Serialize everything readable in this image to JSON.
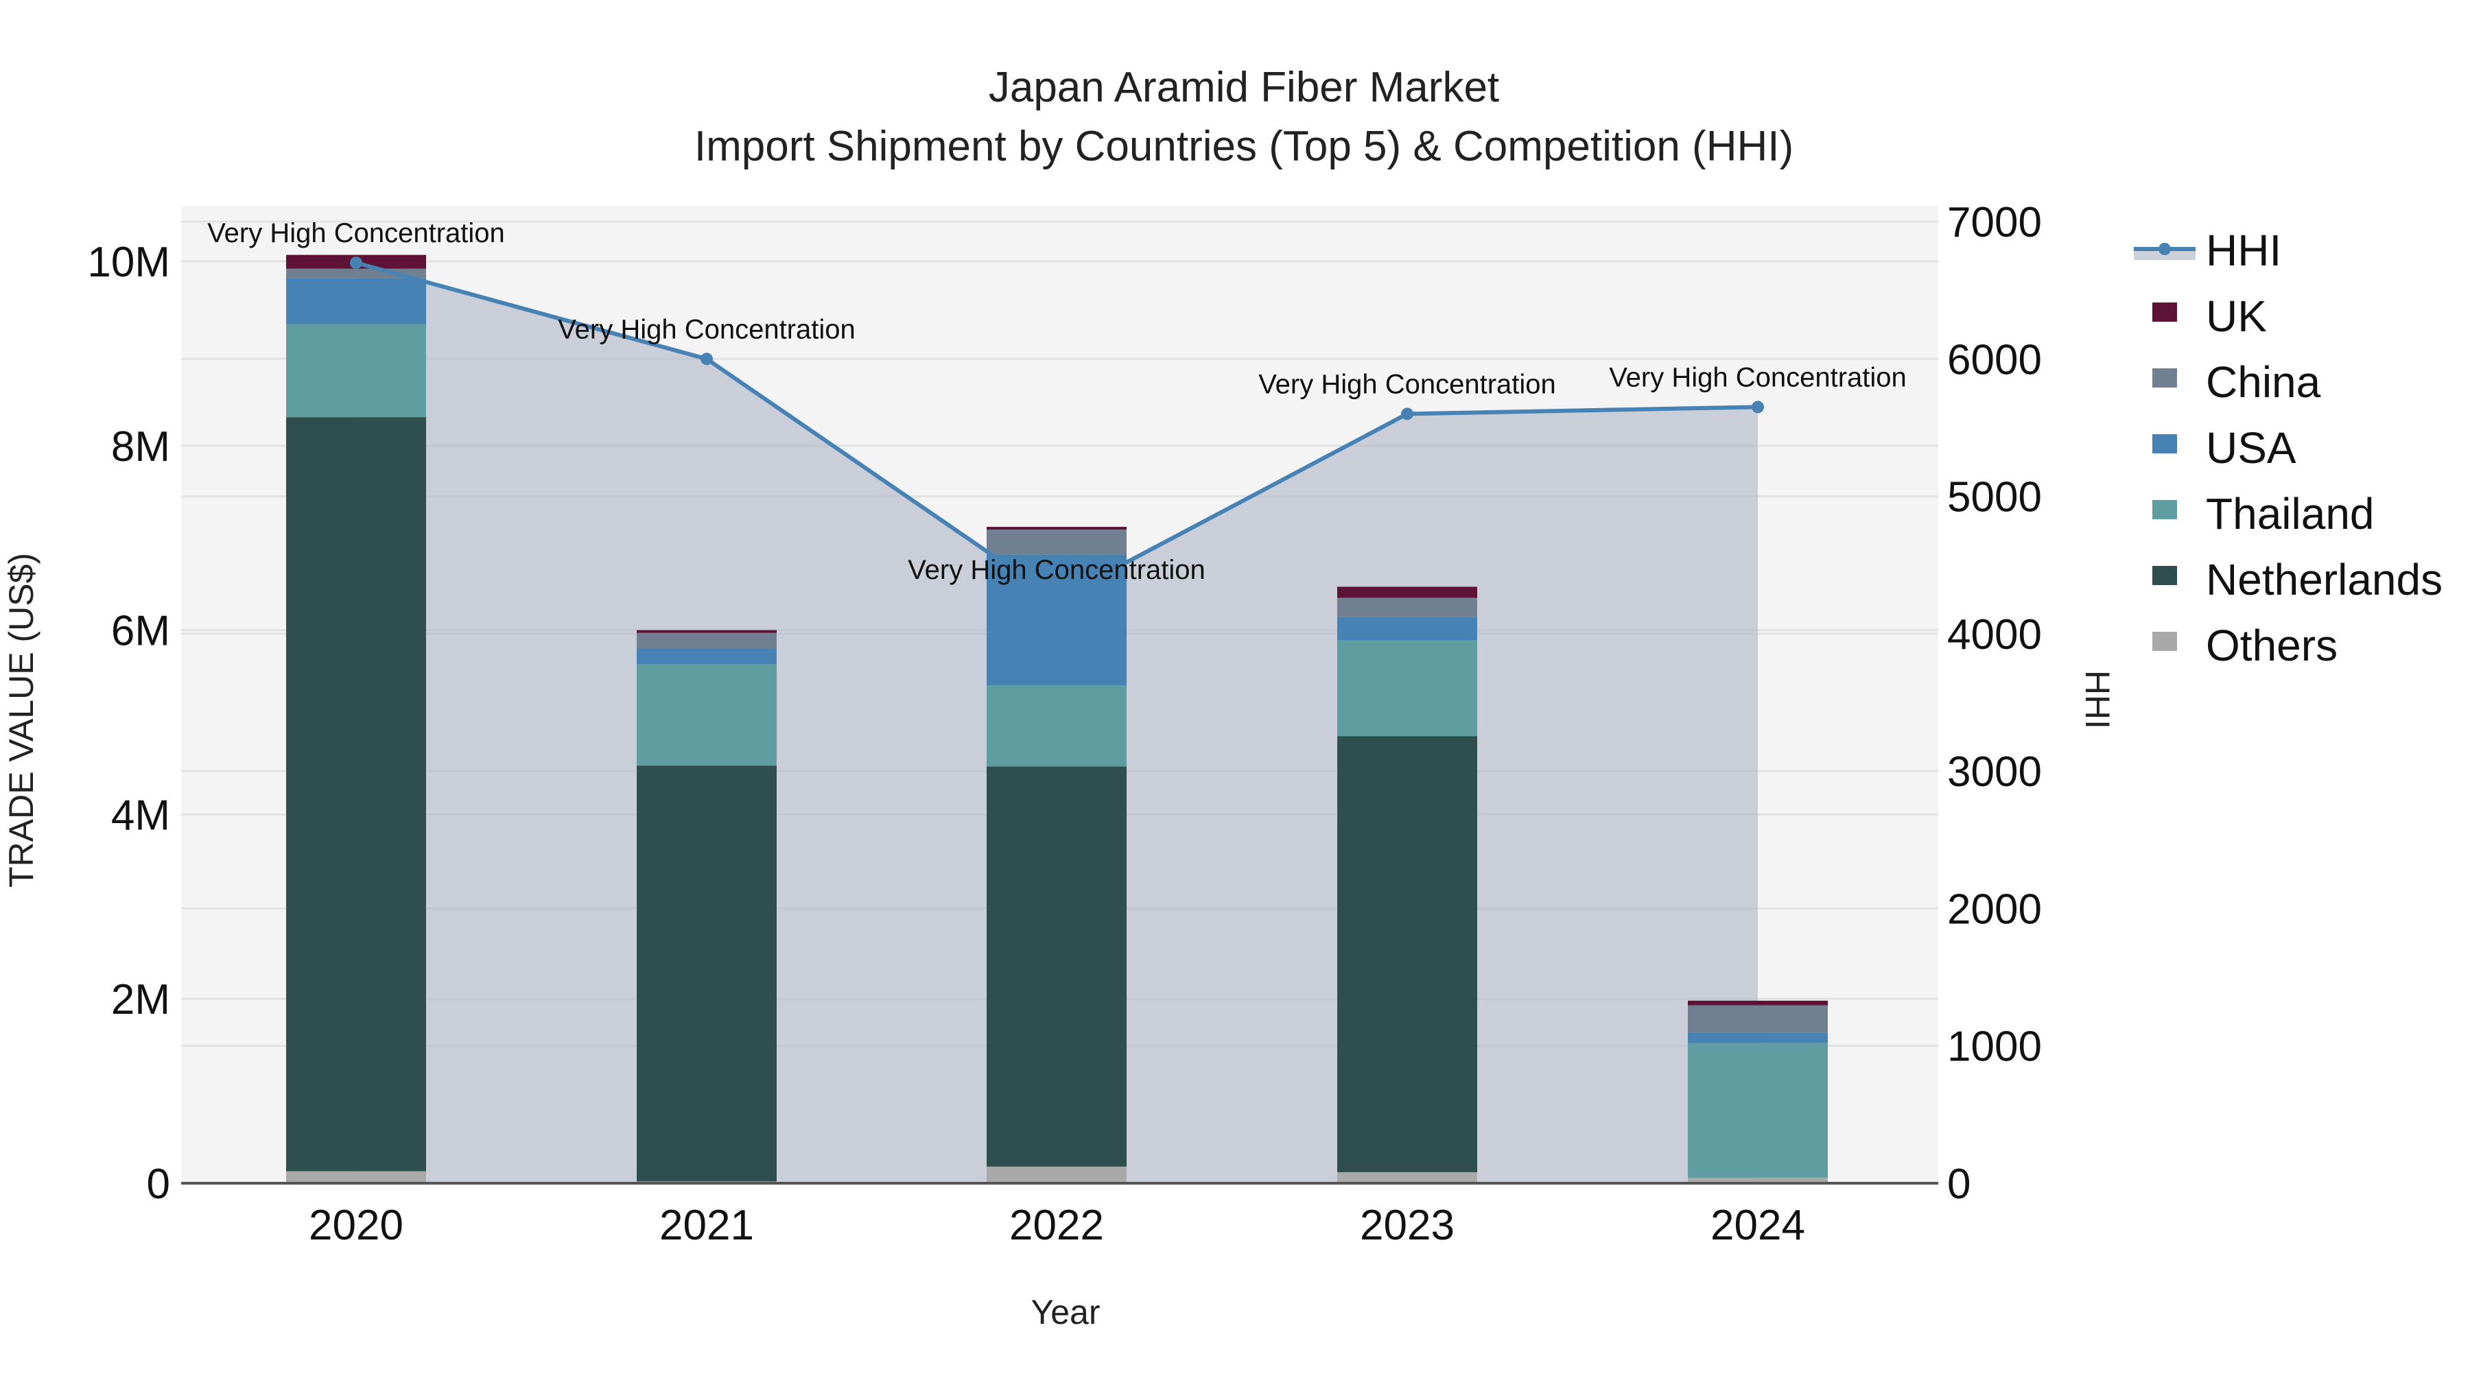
{
  "chart_data": {
    "type": "bar",
    "subtype": "stacked bar with line overlay (dual axis)",
    "title": "Japan Aramid Fiber Market",
    "subtitle": "Import Shipment by Countries (Top 5) & Competition (HHI)",
    "xlabel": "Year",
    "ylabel": "TRADE VALUE (US$)",
    "y2label": "HHI",
    "categories": [
      "2020",
      "2021",
      "2022",
      "2023",
      "2024"
    ],
    "ylim": [
      0,
      10600000
    ],
    "y2lim": [
      0,
      7000
    ],
    "yticks": [
      0,
      2000000,
      4000000,
      6000000,
      8000000,
      10000000
    ],
    "ytick_labels": [
      "0",
      "2M",
      "4M",
      "6M",
      "8M",
      "10M"
    ],
    "y2ticks": [
      0,
      1000,
      2000,
      3000,
      4000,
      5000,
      6000,
      7000
    ],
    "y2tick_labels": [
      "0",
      "1000",
      "2000",
      "3000",
      "4000",
      "5000",
      "6000",
      "7000"
    ],
    "grid": true,
    "legend_position": "right",
    "series": [
      {
        "name": "Others",
        "color": "#A9A9A9",
        "values": [
          130000,
          20000,
          180000,
          120000,
          60000
        ]
      },
      {
        "name": "Netherlands",
        "color": "#2F4F4F",
        "values": [
          8180000,
          4510000,
          4340000,
          4730000,
          0
        ]
      },
      {
        "name": "Thailand",
        "color": "#5F9EA0",
        "values": [
          1010000,
          1100000,
          880000,
          1040000,
          1460000
        ]
      },
      {
        "name": "USA",
        "color": "#4682B4",
        "values": [
          500000,
          170000,
          1420000,
          250000,
          110000
        ]
      },
      {
        "name": "China",
        "color": "#708090",
        "values": [
          100000,
          170000,
          270000,
          210000,
          300000
        ]
      },
      {
        "name": "UK",
        "color": "#5E1236",
        "values": [
          150000,
          30000,
          30000,
          120000,
          50000
        ]
      }
    ],
    "line_series": {
      "name": "HHI",
      "axis": "y2",
      "color": "#4682B4",
      "fill_color": "#B0B7C6",
      "values": [
        6700,
        6000,
        4250,
        5600,
        5650
      ],
      "annotations": [
        "Very High Concentration",
        "Very High Concentration",
        "Very High Concentration",
        "Very High Concentration",
        "Very High Concentration"
      ]
    }
  },
  "legend": {
    "items": [
      {
        "label": "HHI",
        "type": "line",
        "color": "#4682B4"
      },
      {
        "label": "UK",
        "type": "box",
        "color": "#5E1236"
      },
      {
        "label": "China",
        "type": "box",
        "color": "#708090"
      },
      {
        "label": "USA",
        "type": "box",
        "color": "#4682B4"
      },
      {
        "label": "Thailand",
        "type": "box",
        "color": "#5F9EA0"
      },
      {
        "label": "Netherlands",
        "type": "box",
        "color": "#2F4F4F"
      },
      {
        "label": "Others",
        "type": "box",
        "color": "#A9A9A9"
      }
    ]
  },
  "style": {
    "plot_bg": "#F4F4F4",
    "grid_color": "#E2E2E2",
    "axis_line": "#555555"
  }
}
